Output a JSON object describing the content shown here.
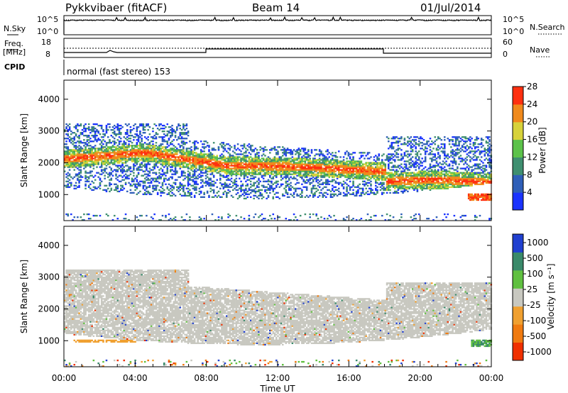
{
  "header": {
    "station": "Pykkvibaer (fitACF)",
    "beam": "Beam 14",
    "date": "01/Jul/2014"
  },
  "panels": {
    "nsky": {
      "label": "N.Sky",
      "ticks_left": [
        "10^5",
        "10^0"
      ],
      "ticks_right": [
        "10^5",
        "10^0"
      ],
      "right_label": "N.Search"
    },
    "freq": {
      "label_line1": "Freq.",
      "label_line2": "[MHz]",
      "ticks_left": [
        "18",
        "8"
      ],
      "ticks_right": [
        "60",
        "0"
      ],
      "right_label": "Nave"
    },
    "cpid": {
      "label": "CPID",
      "text": "normal (fast stereo) 153"
    }
  },
  "chart_data": [
    {
      "type": "heatmap",
      "quantity": "power",
      "ylabel": "Slant Range [km]",
      "xlabel": "Time UT",
      "xlim": [
        "00:00",
        "24:00"
      ],
      "x_ticks": [
        "00:00",
        "04:00",
        "08:00",
        "12:00",
        "16:00",
        "20:00",
        "00:00"
      ],
      "ylim": [
        180,
        4600
      ],
      "y_ticks": [
        1000,
        2000,
        3000,
        4000
      ],
      "colorbar": {
        "label": "Power [dB]",
        "ticks": [
          4,
          8,
          12,
          16,
          20,
          24,
          28
        ],
        "colors": [
          "#1a33ff",
          "#2f5fb8",
          "#3f8f70",
          "#5cc24a",
          "#d7d23a",
          "#f08a1c",
          "#ff3010"
        ]
      },
      "features": [
        {
          "name": "main-band",
          "start_h": 0,
          "end_h": 18,
          "center_km": [
            2100,
            2300,
            1900,
            1850,
            1700
          ],
          "peak_db": 28
        },
        {
          "name": "evening-band",
          "start_h": 18,
          "end_h": 24,
          "center_km": [
            1400,
            1450,
            1350
          ],
          "peak_db": 28
        },
        {
          "name": "upper-scatter",
          "start_h": 0,
          "end_h": 4,
          "range_km": [
            2600,
            3200
          ],
          "level_db": 8
        },
        {
          "name": "late-ground-echo",
          "start_h": 22.6,
          "end_h": 24,
          "range_km": [
            800,
            1000
          ],
          "level_db": 28
        }
      ]
    },
    {
      "type": "heatmap",
      "quantity": "velocity",
      "ylabel": "Slant Range [km]",
      "xlabel": "Time UT",
      "xlim": [
        "00:00",
        "24:00"
      ],
      "x_ticks": [
        "00:00",
        "04:00",
        "08:00",
        "12:00",
        "16:00",
        "20:00",
        "00:00"
      ],
      "ylim": [
        180,
        4600
      ],
      "y_ticks": [
        1000,
        2000,
        3000,
        4000
      ],
      "colorbar": {
        "label": "Velocity [m s⁻¹]",
        "ticks": [
          1000,
          500,
          100,
          25,
          -25,
          -100,
          -500,
          -1000
        ],
        "colors": [
          "#2040d0",
          "#3a8a6a",
          "#60c040",
          "#c8c8c0",
          "#f0a030",
          "#f07a10",
          "#f03000"
        ]
      },
      "features": [
        {
          "name": "ground-scatter-band",
          "start_h": 0,
          "end_h": 24,
          "range_km": [
            1100,
            2800
          ],
          "velocity": 0
        },
        {
          "name": "early-negative-patch",
          "start_h": 0.5,
          "end_h": 4,
          "range_km": [
            900,
            1000
          ],
          "velocity": -100
        },
        {
          "name": "late-positive-patch",
          "start_h": 22.8,
          "end_h": 24,
          "range_km": [
            800,
            1000
          ],
          "velocity": 500
        }
      ]
    }
  ]
}
